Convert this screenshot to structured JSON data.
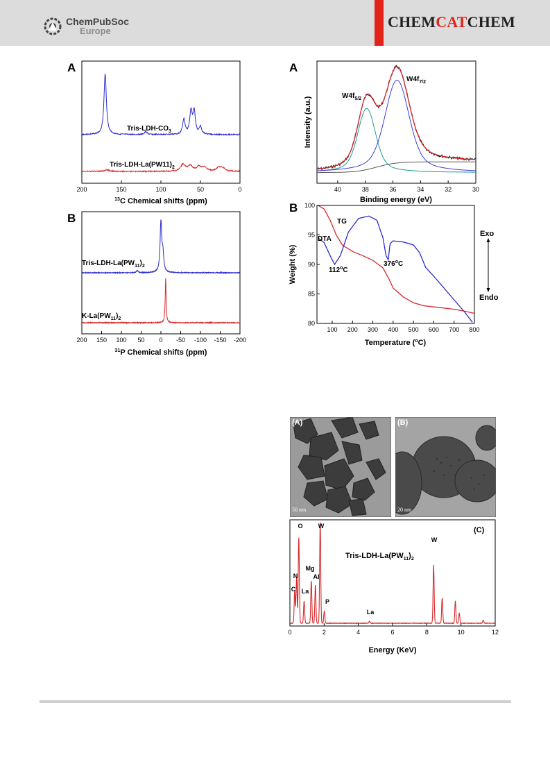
{
  "header": {
    "publisher_line1": "ChemPubSoc",
    "publisher_line2": "Europe",
    "journal_part1": "CHEM",
    "journal_part2": "CAT",
    "journal_part3": "CHEM",
    "logo_icon": "chempubsoc-logo-icon"
  },
  "colors": {
    "blue": "#2a2acf",
    "red": "#d6282b",
    "accent": "#e2231a"
  },
  "panels": {
    "c13": {
      "letter": "A",
      "label_top": "Tris-LDH-CO",
      "label_top_sub": "3",
      "label_bottom": "Tris-LDH-La(PW11)",
      "label_bottom_sub": "2"
    },
    "p31": {
      "letter": "B",
      "label_top": "Tris-LDH-La(PW",
      "label_top_sub1": "11",
      "label_top_mid": ")",
      "label_top_sub2": "2",
      "label_bottom": "K-La(PW",
      "label_bottom_sub1": "11",
      "label_bottom_mid": ")",
      "label_bottom_sub2": "2"
    },
    "xps": {
      "letter": "A",
      "peak1": "W4f",
      "peak1_sub": "5/2",
      "peak2": "W4f",
      "peak2_sub": "7/2"
    },
    "tg": {
      "letter": "B",
      "tg_label": "TG",
      "dta_label": "DTA",
      "t1": "112",
      "t2": "376",
      "deg": "o",
      "unit": "C",
      "exo": "Exo",
      "endo": "Endo"
    },
    "tem": {
      "a": "(A)",
      "b": "(B)",
      "c": "(C)",
      "scale_a": "50 nm",
      "scale_b": "20 nm"
    },
    "edx": {
      "sample": "Tris-LDH-La(PW",
      "sample_sub1": "11",
      "sample_mid": ")",
      "sample_sub2": "2"
    }
  },
  "chart_data": [
    {
      "type": "line",
      "panel": "A (13C NMR)",
      "xlabel_sup": "13",
      "xlabel": "C Chemical shifts (ppm)",
      "ylabel": "",
      "xlim": [
        200,
        0
      ],
      "xticks": [
        "200",
        "150",
        "100",
        "50",
        "0"
      ],
      "series": [
        {
          "name": "Tris-LDH-CO3",
          "color": "#2a2acf",
          "peaks": [
            [
              170.5,
              1.0
            ],
            [
              119,
              0.05
            ],
            [
              71,
              0.25
            ],
            [
              62,
              0.37
            ],
            [
              58,
              0.37
            ],
            [
              50,
              0.12
            ]
          ]
        },
        {
          "name": "Tris-LDH-La(PW11)2",
          "color": "#d6282b",
          "peaks": [
            [
              168,
              0.06
            ],
            [
              72,
              0.28
            ],
            [
              63,
              0.22
            ],
            [
              52,
              0.18
            ],
            [
              45,
              0.16
            ],
            [
              27,
              0.14
            ],
            [
              22,
              0.13
            ]
          ]
        }
      ]
    },
    {
      "type": "line",
      "panel": "B (31P NMR)",
      "xlabel_sup": "31",
      "xlabel": "P Chemical shifts (ppm)",
      "ylabel": "",
      "xlim": [
        200,
        -200
      ],
      "xticks": [
        "200",
        "150",
        "100",
        "50",
        "0",
        "-50",
        "-100",
        "-150",
        "-200"
      ],
      "series": [
        {
          "name": "Tris-LDH-La(PW11)2",
          "color": "#2a2acf",
          "peaks": [
            [
              0,
              1.0
            ],
            [
              -5,
              0.35
            ],
            [
              60,
              0.04
            ]
          ]
        },
        {
          "name": "K-La(PW11)2",
          "color": "#d6282b",
          "peaks": [
            [
              -12,
              1.0
            ]
          ]
        }
      ]
    },
    {
      "type": "line",
      "panel": "A (XPS W4f)",
      "xlabel": "Binding energy (eV)",
      "ylabel": "Intensity (a.u.)",
      "xlim": [
        41.5,
        30
      ],
      "xticks": [
        "40",
        "38",
        "36",
        "34",
        "32",
        "30"
      ],
      "components": [
        {
          "name": "W4f5/2",
          "center": 37.9,
          "height": 0.66
        },
        {
          "name": "W4f7/2",
          "center": 35.7,
          "height": 0.95
        }
      ]
    },
    {
      "type": "line",
      "panel": "B (TG-DTA)",
      "xlabel": "Temperature (",
      "xlabel_sup": "o",
      "xlabel_end": "C)",
      "ylabel": "Weight (%)",
      "xlim": [
        25,
        800
      ],
      "ylim": [
        80,
        100
      ],
      "xticks": [
        "100",
        "200",
        "300",
        "400",
        "500",
        "600",
        "700",
        "800"
      ],
      "yticks": [
        "80",
        "85",
        "90",
        "95",
        "100"
      ],
      "series": [
        {
          "name": "TG",
          "color": "#d6282b",
          "x": [
            30,
            60,
            90,
            120,
            150,
            200,
            250,
            300,
            350,
            380,
            400,
            450,
            500,
            550,
            600,
            650,
            700,
            750,
            800
          ],
          "y": [
            100,
            99.4,
            97.5,
            95,
            93.3,
            92.2,
            91.5,
            90.7,
            89.4,
            87.5,
            86.0,
            84.5,
            83.5,
            83.0,
            82.8,
            82.6,
            82.4,
            82.1,
            81.7
          ]
        },
        {
          "name": "DTA",
          "color": "#2a2acf",
          "x": [
            30,
            60,
            90,
            112,
            140,
            180,
            230,
            280,
            320,
            350,
            365,
            376,
            385,
            400,
            450,
            500,
            530,
            560,
            600,
            650,
            700,
            750,
            790
          ],
          "y": [
            94.5,
            93.7,
            91.5,
            90.0,
            91.5,
            95.5,
            97.8,
            98.2,
            97.5,
            94.5,
            91.5,
            90.8,
            93.5,
            94.0,
            93.8,
            93.3,
            92.0,
            89.5,
            88.0,
            86.0,
            84.0,
            82.0,
            80.2
          ]
        }
      ]
    },
    {
      "type": "line",
      "panel": "C (EDX)",
      "xlabel": "Energy (KeV)",
      "ylabel": "",
      "xlim": [
        0,
        12
      ],
      "xticks": [
        "0",
        "2",
        "4",
        "6",
        "8",
        "10",
        "12"
      ],
      "peaks": [
        {
          "label": "C",
          "x": 0.28,
          "h": 0.32
        },
        {
          "label": "N",
          "x": 0.39,
          "h": 0.45
        },
        {
          "label": "O",
          "x": 0.52,
          "h": 0.85
        },
        {
          "label": "La",
          "x": 0.83,
          "h": 0.22
        },
        {
          "label": "Mg",
          "x": 1.25,
          "h": 0.42
        },
        {
          "label": "Al",
          "x": 1.49,
          "h": 0.38
        },
        {
          "label": "W",
          "x": 1.77,
          "h": 1.0
        },
        {
          "label": "P",
          "x": 2.01,
          "h": 0.12
        },
        {
          "label": "La",
          "x": 4.65,
          "h": 0.02
        },
        {
          "label": "W",
          "x": 8.4,
          "h": 0.58
        },
        {
          "label": "",
          "x": 8.9,
          "h": 0.25
        },
        {
          "label": "",
          "x": 9.67,
          "h": 0.22
        },
        {
          "label": "",
          "x": 9.9,
          "h": 0.1
        },
        {
          "label": "",
          "x": 11.3,
          "h": 0.03
        }
      ]
    }
  ]
}
